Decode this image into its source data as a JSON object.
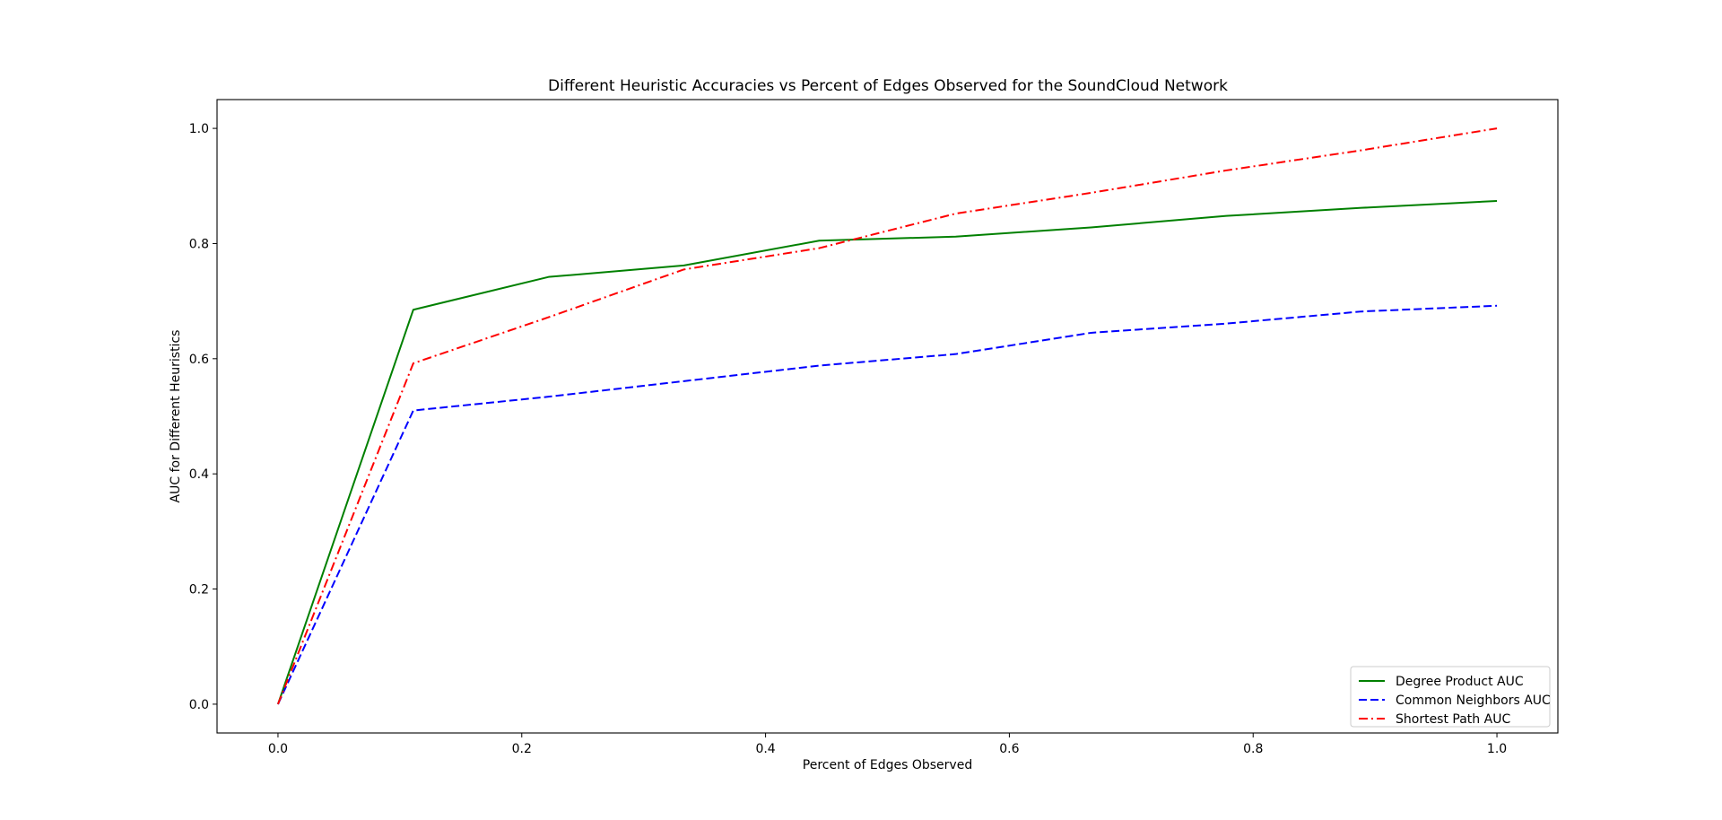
{
  "chart_data": {
    "type": "line",
    "title": "Different Heuristic Accuracies vs Percent of Edges Observed for the SoundCloud Network",
    "xlabel": "Percent of Edges Observed",
    "ylabel": "AUC for Different Heuristics",
    "xlim": [
      -0.05,
      1.05
    ],
    "ylim": [
      -0.05,
      1.05
    ],
    "xticks": [
      0.0,
      0.2,
      0.4,
      0.6,
      0.8,
      1.0
    ],
    "xtick_labels": [
      "0.0",
      "0.2",
      "0.4",
      "0.6",
      "0.8",
      "1.0"
    ],
    "yticks": [
      0.0,
      0.2,
      0.4,
      0.6,
      0.8,
      1.0
    ],
    "ytick_labels": [
      "0.0",
      "0.2",
      "0.4",
      "0.6",
      "0.8",
      "1.0"
    ],
    "grid": false,
    "legend_position": "lower-right",
    "x": [
      0.0,
      0.111,
      0.222,
      0.333,
      0.444,
      0.556,
      0.667,
      0.778,
      0.889,
      1.0
    ],
    "series": [
      {
        "name": "Degree Product AUC",
        "color": "#008000",
        "style": "solid",
        "values": [
          0.0,
          0.685,
          0.742,
          0.762,
          0.805,
          0.812,
          0.828,
          0.848,
          0.862,
          0.874
        ]
      },
      {
        "name": "Common Neighbors AUC",
        "color": "#0000ff",
        "style": "dashed",
        "values": [
          0.0,
          0.51,
          0.534,
          0.561,
          0.588,
          0.608,
          0.645,
          0.661,
          0.682,
          0.692
        ]
      },
      {
        "name": "Shortest Path AUC",
        "color": "#ff0000",
        "style": "dashdot",
        "values": [
          0.0,
          0.592,
          0.672,
          0.755,
          0.792,
          0.852,
          0.888,
          0.927,
          0.962,
          1.0
        ]
      }
    ]
  }
}
